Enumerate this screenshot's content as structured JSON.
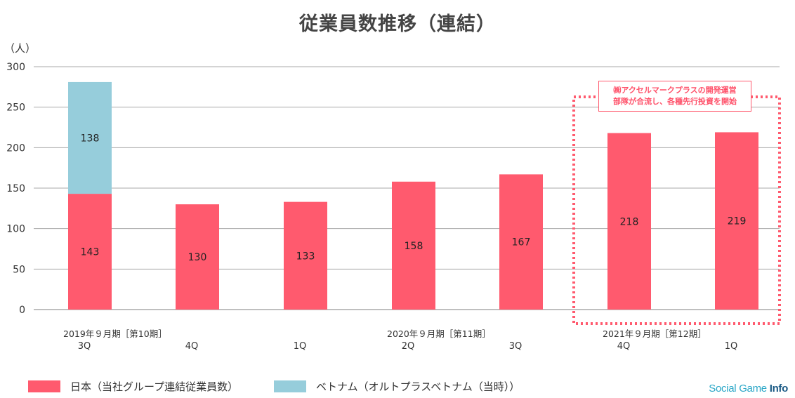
{
  "title": "従業員数推移（連結）",
  "unit_label": "（人）",
  "callout": {
    "line1": "㈱アクセルマークプラスの開発運営",
    "line2": "部隊が合流し、各種先行投資を開始"
  },
  "colors": {
    "japan": "#ff5a6e",
    "vietnam": "#96cddb",
    "callout_border": "#ff5a6e"
  },
  "brand": {
    "part1": "Social Game ",
    "part2": "Info"
  },
  "chart_data": {
    "type": "bar",
    "stacked": true,
    "title": "従業員数推移（連結）",
    "ylabel": "（人）",
    "ylim": [
      0,
      300
    ],
    "yticks": [
      0,
      50,
      100,
      150,
      200,
      250,
      300
    ],
    "grid": true,
    "legend_position": "bottom",
    "categories": [
      "3Q",
      "4Q",
      "1Q",
      "2Q",
      "3Q",
      "4Q",
      "1Q"
    ],
    "period_labels": [
      {
        "text": "2019年９月期［第10期］",
        "category_index": 0
      },
      {
        "text": "2020年９月期［第11期］",
        "category_index": 3
      },
      {
        "text": "2021年９月期［第12期］",
        "category_index": 5
      }
    ],
    "series": [
      {
        "name": "日本（当社グループ連結従業員数）",
        "values": [
          143,
          130,
          133,
          158,
          167,
          218,
          219
        ]
      },
      {
        "name": "ベトナム（オルトプラスベトナム（当時））",
        "values": [
          138,
          null,
          null,
          null,
          null,
          null,
          null
        ]
      }
    ]
  }
}
